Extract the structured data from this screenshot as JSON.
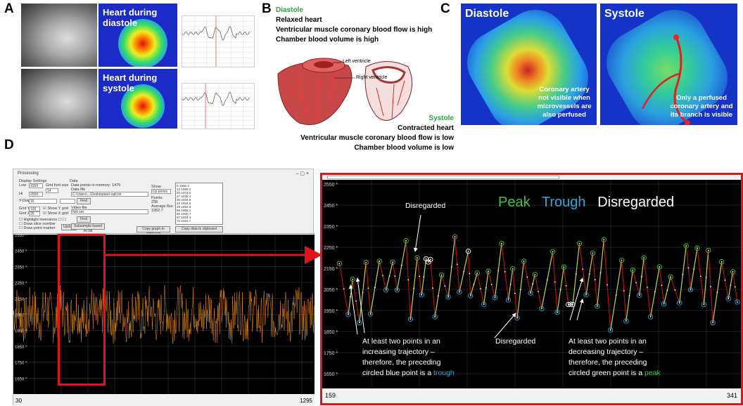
{
  "panels": {
    "a": {
      "label": "A",
      "diastole_title": "Heart during diastole",
      "systole_title": "Heart during systole"
    },
    "b": {
      "label": "B",
      "diastole": {
        "heading": "Diastole",
        "lines": [
          "Relaxed heart",
          "Ventricular muscle coronary blood flow is high",
          "Chamber blood volume is high"
        ]
      },
      "left_ventricle": "Left ventricle",
      "right_ventricle": "Right ventricle",
      "systole": {
        "heading": "Systole",
        "lines": [
          "Contracted heart",
          "Ventricular muscle coronary blood flow is low",
          "Chamber blood volume is low"
        ]
      }
    },
    "c": {
      "label": "C",
      "diastole_title": "Diastole",
      "diastole_note": "Coronary artery not visible when microvessels are also perfused",
      "systole_title": "Systole",
      "systole_note": "Only a perfused coronary artery and its branch is visible"
    },
    "d": {
      "label": "D"
    }
  },
  "app": {
    "title": "Processing",
    "display_settings": {
      "title": "Display Settings",
      "low_label": "Low",
      "low": "1550",
      "hi_label": "Hi",
      "hi": "2550",
      "grid_font_label": "Grid font size",
      "grid_font": "14",
      "ydisp_label": "Y-Disp",
      "ydisp": "16",
      "gridy_label": "Grid Y:",
      "gridy": "100",
      "gridx_label": "Grid X:",
      "gridx": "25",
      "show_y_grid": "Show Y grid",
      "show_x_grid": "Show X grid",
      "highlight_inversions": "Highlight inversions",
      "draw_slice_number": "Draw slice number",
      "draw_point_marker": "Draw point marker",
      "update": "Update"
    },
    "data": {
      "title": "Data",
      "points_in_memory": "Data points in memory: 1475",
      "data_file_label": "Data file",
      "data_file": "C:\\Users\\...\\Desktop\\per-sqlt.txt",
      "find": "Find",
      "video_file_label": "Video file",
      "video_file": "Not set",
      "subsample": "Subsample based on list",
      "show_label": "Show",
      "show_value": "Up points",
      "points_label": "Points:",
      "points": "238",
      "avg_label": "Average flux:",
      "avg": "1952.7",
      "copy_graph": "Copy graph to clipboard",
      "copy_data": "Copy data to clipboard",
      "list": [
        "6  1966.2",
        "13  1968.2",
        "20  1974.5",
        "27  2038.4",
        "35  2034.5",
        "43  1944.5",
        "49  1852.8",
        "56  1856.1",
        "60  1930.7",
        "67  1934.2",
        "72  2016.7"
      ]
    }
  },
  "chart_data": [
    {
      "type": "line",
      "name": "overview-trace",
      "yticks": [
        "2550 *",
        "2450 *",
        "2350 *",
        "2250 *",
        "2150 *",
        "2050 *",
        "1950 *",
        "1850 *",
        "1750 *",
        "1650 *"
      ],
      "ylim": [
        1550,
        2550
      ],
      "xlim": [
        30,
        1295
      ],
      "x_start_label": "30",
      "x_end_label": "1295",
      "grid": true,
      "line_color": "#f0901a",
      "background": "#000000"
    },
    {
      "type": "line",
      "name": "zoomed-trace",
      "yticks": [
        "2550 *",
        "2450 *",
        "2350 *",
        "2250 *",
        "2150 *",
        "2050 *",
        "1950 *",
        "1850 *",
        "1750 *",
        "1650 *"
      ],
      "ylim": [
        1550,
        2560
      ],
      "xlim": [
        159,
        341
      ],
      "x_start_label": "159",
      "x_end_label": "341",
      "grid": true,
      "legend": {
        "peak": "Peak",
        "trough": "Trough",
        "disregarded": "Disregarded",
        "placement": "top-right"
      },
      "colors": {
        "peak": "#3fc43f",
        "trough": "#29a8e0",
        "disregarded": "#ffffff",
        "rising": "#c8d23a",
        "falling": "#b01010"
      },
      "points": [
        [
          161,
          2173,
          "p"
        ],
        [
          165,
          1931,
          "t"
        ],
        [
          167,
          2098,
          "p"
        ],
        [
          170,
          1892,
          "t"
        ],
        [
          173,
          2178,
          "p"
        ],
        [
          175,
          1933,
          "t"
        ],
        [
          179,
          2184,
          "p"
        ],
        [
          182,
          2047,
          "t"
        ],
        [
          185,
          2179,
          "p"
        ],
        [
          187,
          2047,
          "t"
        ],
        [
          191,
          2281,
          "p"
        ],
        [
          193,
          1909,
          "t"
        ],
        [
          196,
          2200,
          "p"
        ],
        [
          198,
          2024,
          "t"
        ],
        [
          200,
          2195,
          "d"
        ],
        [
          201,
          2180,
          "d"
        ],
        [
          202,
          2192,
          "d"
        ],
        [
          204,
          1920,
          "t"
        ],
        [
          207,
          2118,
          "p"
        ],
        [
          210,
          2014,
          "t"
        ],
        [
          213,
          2300,
          "p"
        ],
        [
          215,
          2038,
          "t"
        ],
        [
          219,
          2231,
          "d"
        ],
        [
          220,
          2020,
          "t"
        ],
        [
          223,
          2127,
          "p"
        ],
        [
          226,
          1979,
          "t"
        ],
        [
          228,
          2136,
          "p"
        ],
        [
          231,
          2011,
          "t"
        ],
        [
          234,
          2268,
          "p"
        ],
        [
          237,
          2000,
          "t"
        ],
        [
          239,
          2148,
          "p"
        ],
        [
          241,
          1914,
          "t"
        ],
        [
          244,
          2184,
          "p"
        ],
        [
          247,
          2033,
          "t"
        ],
        [
          249,
          2120,
          "p"
        ],
        [
          252,
          1959,
          "t"
        ],
        [
          257,
          2229,
          "p"
        ],
        [
          259,
          1941,
          "t"
        ],
        [
          262,
          2156,
          "p"
        ],
        [
          264,
          1978,
          "d"
        ],
        [
          265,
          1980,
          "d"
        ],
        [
          266,
          1978,
          "d"
        ],
        [
          269,
          2268,
          "p"
        ],
        [
          272,
          2024,
          "t"
        ],
        [
          275,
          2222,
          "p"
        ],
        [
          277,
          1970,
          "t"
        ],
        [
          280,
          2286,
          "p"
        ],
        [
          283,
          1857,
          "t"
        ],
        [
          288,
          2188,
          "p"
        ],
        [
          290,
          1900,
          "t"
        ],
        [
          293,
          2141,
          "p"
        ],
        [
          296,
          2022,
          "t"
        ],
        [
          298,
          2200,
          "p"
        ],
        [
          301,
          1920,
          "t"
        ],
        [
          305,
          2157,
          "p"
        ],
        [
          307,
          1981,
          "t"
        ],
        [
          310,
          2109,
          "p"
        ],
        [
          314,
          1986,
          "t"
        ],
        [
          317,
          2256,
          "p"
        ],
        [
          319,
          2048,
          "t"
        ],
        [
          322,
          2246,
          "p"
        ],
        [
          325,
          1978,
          "t"
        ],
        [
          327,
          2235,
          "p"
        ],
        [
          329,
          1892,
          "t"
        ],
        [
          333,
          2181,
          "p"
        ],
        [
          336,
          2006,
          "t"
        ],
        [
          338,
          2134,
          "p"
        ],
        [
          340,
          1990,
          "t"
        ]
      ],
      "annotations": {
        "disregarded_top": "Disregarded",
        "disregarded_bottom": "Disregarded",
        "increasing": [
          "At least two points in an",
          "increasing trajectory –",
          "therefore, the preceding",
          "circled blue point is a "
        ],
        "increasing_keyword": "trough",
        "decreasing": [
          "At least two points in an",
          "decreasing trajectory –",
          "therefore, the preceding",
          "circled green point is a "
        ],
        "decreasing_keyword": "peak"
      }
    }
  ]
}
